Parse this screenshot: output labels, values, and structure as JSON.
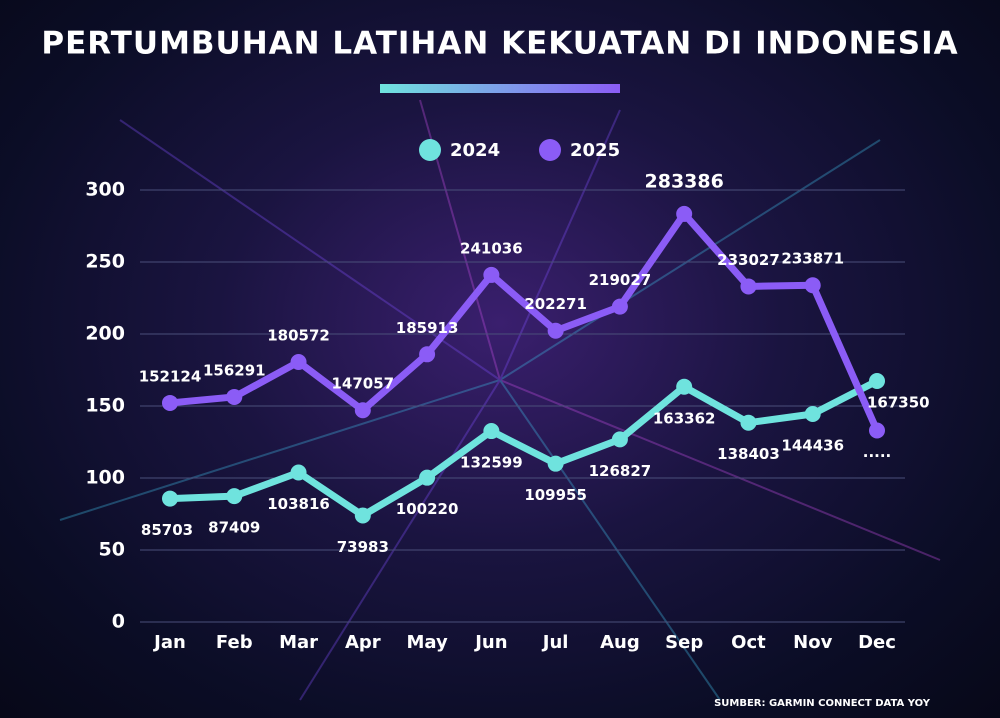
{
  "chart_data": {
    "type": "line",
    "title": "PERTUMBUHAN LATIHAN KEKUATAN DI INDONESIA",
    "source": "SUMBER: GARMIN CONNECT DATA YOY",
    "categories": [
      "Jan",
      "Feb",
      "Mar",
      "Apr",
      "May",
      "Jun",
      "Jul",
      "Aug",
      "Sep",
      "Oct",
      "Nov",
      "Dec"
    ],
    "series": [
      {
        "name": "2024",
        "color": "#6fe3de",
        "values": [
          85.703,
          87.409,
          103.816,
          73.983,
          100.22,
          132.599,
          109.955,
          126.827,
          163.362,
          138.403,
          144.436,
          167.35
        ],
        "value_labels": [
          "85703",
          "87409",
          "103816",
          "73983",
          "100220",
          "132599",
          "109955",
          "126827",
          "163362",
          "138403",
          "144436",
          "167350"
        ]
      },
      {
        "name": "2025",
        "color": "#8b5cf6",
        "values": [
          152.124,
          156.291,
          180.572,
          147.057,
          185.913,
          241.036,
          202.271,
          219.027,
          283.386,
          233.027,
          233.871,
          133
        ],
        "value_labels": [
          "152124",
          "156291",
          "180572",
          "147057",
          "185913",
          "241036",
          "202271",
          "219027",
          "283386",
          "233027",
          "233871",
          "....."
        ]
      }
    ],
    "ylim": [
      0,
      300
    ],
    "yticks": [
      0,
      50,
      100,
      150,
      200,
      250,
      300
    ],
    "grid": true,
    "legend": "top"
  }
}
